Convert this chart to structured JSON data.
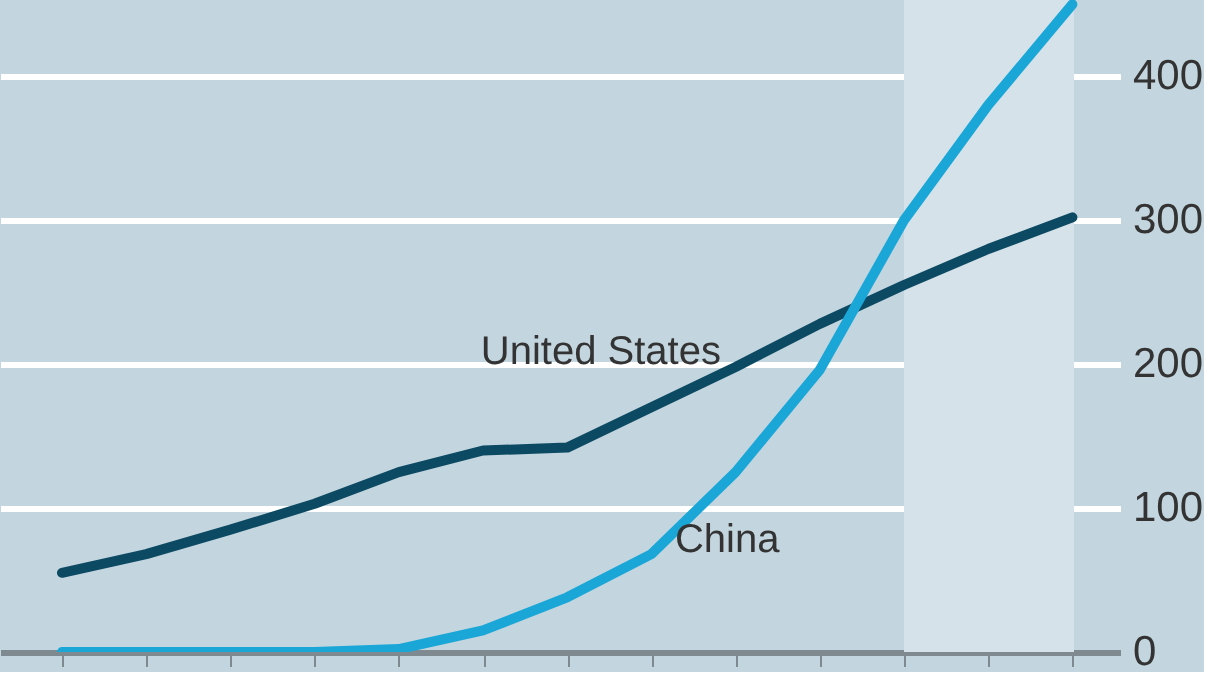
{
  "chart_data": {
    "type": "line",
    "categories": [
      null,
      null,
      null,
      null,
      null,
      null,
      null,
      null,
      null,
      null,
      null,
      null,
      null
    ],
    "series": [
      {
        "name": "United States",
        "color": "#0c4a63",
        "values": [
          55,
          68,
          85,
          103,
          125,
          140,
          142,
          170,
          198,
          228,
          255,
          280,
          302
        ]
      },
      {
        "name": "China",
        "color": "#1aa7d8",
        "values": [
          0,
          0,
          0,
          0,
          2,
          15,
          38,
          68,
          125,
          196,
          300,
          380,
          450
        ]
      }
    ],
    "ylim": [
      0,
      453
    ],
    "yticks": [
      0,
      100,
      200,
      300,
      400
    ],
    "grid": "y",
    "tick_labels": "y",
    "legend": false
  }
}
